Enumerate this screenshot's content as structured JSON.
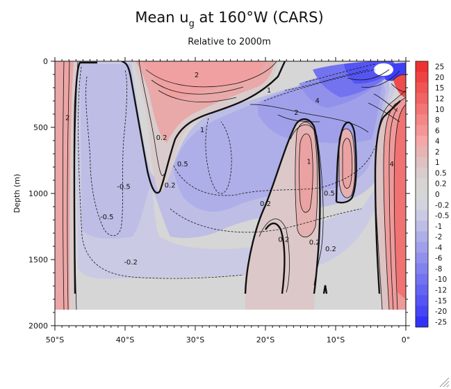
{
  "chart_data": {
    "type": "heatmap",
    "title_main": "Mean u",
    "title_sub": "g",
    "title_rest": " at 160°W (CARS)",
    "subtitle": "Relative to 2000m",
    "ylabel": "Depth (m)",
    "x": {
      "range": [
        -50,
        0
      ],
      "ticks": [
        -50,
        -40,
        -30,
        -20,
        -10,
        0
      ],
      "tick_labels": [
        "50°S",
        "40°S",
        "30°S",
        "20°S",
        "10°S",
        "0°"
      ]
    },
    "y": {
      "range": [
        0,
        2000
      ],
      "inverted": true,
      "ticks": [
        0,
        500,
        1000,
        1500,
        2000
      ],
      "tick_labels": [
        "0",
        "500",
        "1000",
        "1500",
        "2000"
      ]
    },
    "data_bottom_depth": 1870,
    "colorbar": {
      "labels": [
        "25",
        "20",
        "15",
        "12",
        "10",
        "8",
        "6",
        "4",
        "2",
        "1",
        "0.5",
        "0.2",
        "0",
        "-0.2",
        "-0.5",
        "-1",
        "-2",
        "-4",
        "-6",
        "-8",
        "-10",
        "-12",
        "-15",
        "-20",
        "-25"
      ],
      "colors": [
        "#ee3232",
        "#ef4343",
        "#f05454",
        "#f16464",
        "#f37575",
        "#f48686",
        "#f59696",
        "#f6a7a7",
        "#e7b4b4",
        "#dfc1c1",
        "#dacccc",
        "#d8d4d4",
        "#d6d6d6",
        "#d3d3e0",
        "#cacae4",
        "#bdbde6",
        "#aeaee8",
        "#a0a0ea",
        "#9191ec",
        "#8282ee",
        "#7373f0",
        "#6464f2",
        "#5555f4",
        "#4646f6",
        "#3333f8"
      ]
    },
    "regions": [
      {
        "name": "south-band-positive",
        "value": 2,
        "lon": [
          -50,
          -47
        ],
        "depth": [
          0,
          1870
        ]
      },
      {
        "name": "upper-subtropical-westward",
        "value": -0.5,
        "lon": [
          -47,
          -36
        ],
        "depth": [
          0,
          1600
        ]
      },
      {
        "name": "upper-positive-core",
        "value": 2,
        "lon": [
          -35,
          -22
        ],
        "depth": [
          0,
          320
        ]
      },
      {
        "name": "equatorial-westward-core",
        "value": -6,
        "lon": [
          -8,
          -1
        ],
        "depth": [
          0,
          200
        ]
      },
      {
        "name": "subsurface-eastward-14S",
        "value": 1,
        "lon": [
          -16,
          -12
        ],
        "depth": [
          450,
          1400
        ]
      },
      {
        "name": "subsurface-eastward-8S",
        "value": 1,
        "lon": [
          -9,
          -7
        ],
        "depth": [
          500,
          1000
        ]
      },
      {
        "name": "equatorial-eastward-deep",
        "value": 4,
        "lon": [
          -3,
          0
        ],
        "depth": [
          150,
          1870
        ]
      }
    ],
    "contour_labels": [
      {
        "text": "2",
        "lon": -48.2,
        "depth": 430
      },
      {
        "text": "2",
        "lon": -29.8,
        "depth": 105
      },
      {
        "text": "1",
        "lon": -29.0,
        "depth": 520
      },
      {
        "text": "0.2",
        "lon": -34.8,
        "depth": 580
      },
      {
        "text": "0.2",
        "lon": -33.6,
        "depth": 940
      },
      {
        "text": "0.5",
        "lon": -31.8,
        "depth": 780
      },
      {
        "text": "-0.5",
        "lon": -40.2,
        "depth": 950
      },
      {
        "text": "-0.5",
        "lon": -42.6,
        "depth": 1180
      },
      {
        "text": "-0.2",
        "lon": -39.2,
        "depth": 1520
      },
      {
        "text": "1",
        "lon": -19.5,
        "depth": 220
      },
      {
        "text": "2",
        "lon": -15.6,
        "depth": 390
      },
      {
        "text": "4",
        "lon": -12.6,
        "depth": 300
      },
      {
        "text": "0.2",
        "lon": -20.0,
        "depth": 1080
      },
      {
        "text": "0.2",
        "lon": -17.4,
        "depth": 1350
      },
      {
        "text": "1",
        "lon": -13.8,
        "depth": 760
      },
      {
        "text": "0.2",
        "lon": -13.0,
        "depth": 1370
      },
      {
        "text": "0.5",
        "lon": -10.9,
        "depth": 1000
      },
      {
        "text": "0.2",
        "lon": -10.7,
        "depth": 1420
      },
      {
        "text": "4",
        "lon": -2.0,
        "depth": 780
      }
    ]
  }
}
